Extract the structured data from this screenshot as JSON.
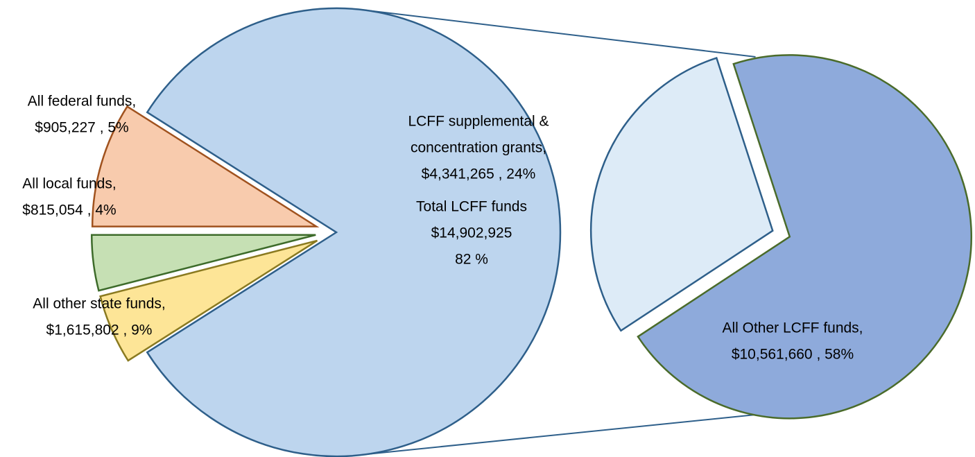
{
  "chart_data": {
    "type": "pie-of-pie",
    "primary": {
      "categories": [
        [
          "All federal funds,"
        ],
        [
          "All local funds,"
        ],
        [
          "All other state funds,"
        ],
        [
          "Total LCFF funds"
        ]
      ],
      "values": [
        5,
        4,
        9,
        82
      ],
      "value_labels": [
        [
          "$905,227 , 5%"
        ],
        [
          "$815,054 , 4%"
        ],
        [
          "$1,615,802 , 9%"
        ],
        [
          "$14,902,925",
          "82 %"
        ]
      ],
      "colors": [
        "#fde597",
        "#c6e0b4",
        "#f8cbad",
        "#bdd5ee"
      ]
    },
    "secondary": {
      "categories": [
        [
          "LCFF supplemental  &",
          "concentration grants,"
        ],
        [
          "All Other LCFF funds,"
        ]
      ],
      "values": [
        24,
        58
      ],
      "value_labels": [
        [
          "$4,341,265 , 24%"
        ],
        [
          "$10,561,660 , 58%"
        ]
      ],
      "colors": [
        "#ddebf7",
        "#8eaadb"
      ]
    }
  }
}
